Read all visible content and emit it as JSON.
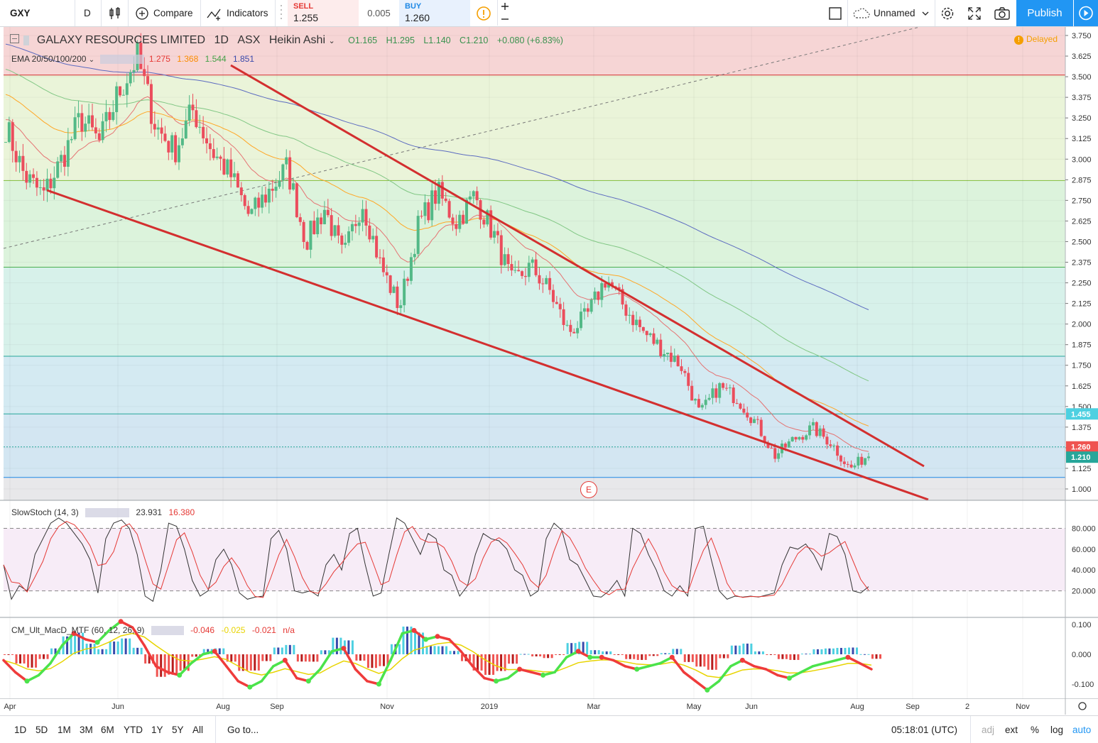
{
  "toolbar": {
    "symbol": "GXY",
    "interval": "D",
    "compare_label": "Compare",
    "indicators_label": "Indicators",
    "sell_label": "SELL",
    "sell_price": "1.255",
    "spread": "0.005",
    "buy_label": "BUY",
    "buy_price": "1.260",
    "layout_name": "Unnamed",
    "publish_label": "Publish"
  },
  "header": {
    "instrument": "GALAXY RESOURCES LIMITED",
    "timeframe": "1D",
    "exchange": "ASX",
    "chart_style": "Heikin Ashi",
    "open": "O1.165",
    "high": "H1.295",
    "low": "L1.140",
    "close": "C1.210",
    "change": "+0.080 (+6.83%)",
    "delayed": "Delayed"
  },
  "ema_legend": {
    "name": "EMA 20/50/100/200",
    "v20": "1.275",
    "v50": "1.368",
    "v100": "1.544",
    "v200": "1.851"
  },
  "stoch_legend": {
    "name": "SlowStoch (14, 3)",
    "k": "23.931",
    "d": "16.380"
  },
  "macd_legend": {
    "name": "CM_Ult_MacD_MTF (60, 12, 26, 9)",
    "macd": "-0.046",
    "signal": "-0.025",
    "hist": "-0.021",
    "extra": "n/a"
  },
  "event_marker": "E",
  "colors": {
    "up_candle": "#53b987",
    "down_candle": "#eb4d5c",
    "trendline": "#d32f2f",
    "ema20": "#e57373",
    "ema50": "#ffa726",
    "ema100": "#81c784",
    "ema200": "#5c6bc0",
    "price_badge_last": "#26a69a",
    "price_badge_buy": "#ef5350",
    "accent": "#2196f3"
  },
  "chart_data": [
    {
      "type": "candlestick",
      "title": "GALAXY RESOURCES LIMITED, 1D, ASX, Heikin Ashi",
      "price_axis": [
        "3.750",
        "3.625",
        "3.500",
        "3.375",
        "3.250",
        "3.125",
        "3.000",
        "2.875",
        "2.750",
        "2.625",
        "2.500",
        "2.375",
        "2.250",
        "2.125",
        "2.000",
        "1.875",
        "1.750",
        "1.625",
        "1.500",
        "1.375",
        "1.250",
        "1.125",
        "1.000"
      ],
      "ylim": [
        0.95,
        3.8
      ],
      "time_axis": [
        "Apr",
        "Jun",
        "Aug",
        "Sep",
        "Nov",
        "2019",
        "Mar",
        "May",
        "Jun",
        "Aug",
        "Sep",
        "2",
        "Nov"
      ],
      "price_labels": {
        "level": "1.455",
        "buy": "1.260",
        "last": "1.210"
      },
      "fib_levels": [
        3.51,
        2.87,
        2.345,
        1.805,
        1.455,
        1.07
      ],
      "grid": true,
      "series": [
        {
          "name": "EMA 20",
          "last": 1.275
        },
        {
          "name": "EMA 50",
          "last": 1.368
        },
        {
          "name": "EMA 100",
          "last": 1.544
        },
        {
          "name": "EMA 200",
          "last": 1.851
        }
      ],
      "trendlines": [
        {
          "from": [
            "Apr",
            2.8
          ],
          "to": [
            "Aug",
            0.95
          ],
          "role": "support"
        },
        {
          "from": [
            "Aug",
            3.56
          ],
          "to": [
            "Aug",
            1.13
          ],
          "role": "resistance"
        }
      ],
      "path_points": [
        [
          "Apr",
          3.2
        ],
        [
          "Apr",
          2.9
        ],
        [
          "Apr",
          2.78
        ],
        [
          "May",
          3.0
        ],
        [
          "May",
          3.25
        ],
        [
          "May",
          3.1
        ],
        [
          "May",
          3.4
        ],
        [
          "Jun",
          3.62
        ],
        [
          "Jun",
          3.2
        ],
        [
          "Jul",
          3.05
        ],
        [
          "Jul",
          3.3
        ],
        [
          "Jul",
          3.05
        ],
        [
          "Aug",
          2.9
        ],
        [
          "Aug",
          2.65
        ],
        [
          "Aug",
          2.8
        ],
        [
          "Sep",
          2.95
        ],
        [
          "Sep",
          2.5
        ],
        [
          "Oct",
          2.7
        ],
        [
          "Oct",
          2.4
        ],
        [
          "Oct",
          2.75
        ],
        [
          "Oct",
          2.35
        ],
        [
          "Nov",
          2.1
        ],
        [
          "Nov",
          2.6
        ],
        [
          "Nov",
          2.8
        ],
        [
          "Dec",
          2.62
        ],
        [
          "Dec",
          2.78
        ],
        [
          "Dec",
          2.55
        ],
        [
          "2019",
          2.25
        ],
        [
          "2019",
          2.35
        ],
        [
          "Jan",
          2.2
        ],
        [
          "Feb",
          1.95
        ],
        [
          "Feb",
          2.05
        ],
        [
          "Mar",
          2.28
        ],
        [
          "Mar",
          2.1
        ],
        [
          "Apr",
          1.95
        ],
        [
          "Apr",
          1.85
        ],
        [
          "Apr",
          1.75
        ],
        [
          "May",
          1.45
        ],
        [
          "May",
          1.62
        ],
        [
          "Jun",
          1.55
        ],
        [
          "Jun",
          1.4
        ],
        [
          "Jul",
          1.2
        ],
        [
          "Jul",
          1.3
        ],
        [
          "Jul",
          1.37
        ],
        [
          "Aug",
          1.28
        ],
        [
          "Aug",
          1.12
        ],
        [
          "Aug",
          1.21
        ]
      ]
    },
    {
      "type": "line",
      "title": "SlowStoch (14, 3)",
      "y_axis": [
        "80.000",
        "60.000",
        "40.000",
        "20.000"
      ],
      "ylim": [
        0,
        100
      ],
      "bands": [
        20,
        80
      ],
      "series": [
        {
          "name": "%K",
          "last": 23.931
        },
        {
          "name": "%D",
          "last": 16.38
        }
      ],
      "k_values": [
        45,
        12,
        25,
        20,
        55,
        70,
        85,
        90,
        85,
        75,
        65,
        50,
        18,
        70,
        85,
        88,
        80,
        55,
        15,
        10,
        40,
        85,
        82,
        60,
        30,
        15,
        20,
        50,
        60,
        45,
        18,
        12,
        14,
        15,
        70,
        78,
        60,
        20,
        18,
        20,
        15,
        45,
        55,
        40,
        75,
        80,
        45,
        15,
        18,
        55,
        90,
        85,
        70,
        55,
        75,
        70,
        40,
        35,
        15,
        25,
        55,
        75,
        70,
        68,
        60,
        40,
        35,
        15,
        20,
        70,
        85,
        78,
        50,
        45,
        30,
        15,
        14,
        20,
        30,
        15,
        80,
        75,
        55,
        40,
        20,
        15,
        25,
        15,
        80,
        82,
        50,
        20,
        12,
        15,
        14,
        15,
        14,
        16,
        18,
        45,
        62,
        60,
        65,
        55,
        40,
        75,
        72,
        55,
        20,
        18,
        24
      ]
    },
    {
      "type": "bar",
      "title": "CM_Ult_MacD_MTF (60, 12, 26, 9)",
      "y_axis": [
        "0.100",
        "0.000",
        "-0.100"
      ],
      "ylim": [
        -0.14,
        0.11
      ],
      "series": [
        {
          "name": "MACD",
          "last": -0.046
        },
        {
          "name": "Signal",
          "last": -0.025
        },
        {
          "name": "Histogram",
          "last": -0.021
        }
      ],
      "macd_values": [
        -0.02,
        -0.06,
        -0.09,
        -0.07,
        -0.03,
        0.03,
        0.07,
        0.05,
        0.04,
        0.08,
        0.11,
        0.09,
        0.03,
        -0.04,
        -0.06,
        -0.07,
        -0.03,
        0.0,
        0.01,
        -0.04,
        -0.09,
        -0.11,
        -0.09,
        -0.04,
        -0.02,
        -0.08,
        -0.09,
        -0.05,
        0.01,
        0.02,
        -0.05,
        -0.09,
        -0.1,
        -0.02,
        0.07,
        0.08,
        0.05,
        0.06,
        0.05,
        0.01,
        -0.04,
        -0.08,
        -0.09,
        -0.08,
        -0.05,
        -0.06,
        -0.07,
        -0.06,
        -0.01,
        0.01,
        -0.01,
        -0.01,
        -0.02,
        -0.04,
        -0.05,
        -0.04,
        -0.03,
        -0.01,
        -0.06,
        -0.09,
        -0.12,
        -0.09,
        -0.04,
        -0.02,
        -0.04,
        -0.05,
        -0.07,
        -0.08,
        -0.06,
        -0.04,
        -0.03,
        -0.02,
        -0.01,
        -0.03,
        -0.05
      ]
    }
  ]
}
